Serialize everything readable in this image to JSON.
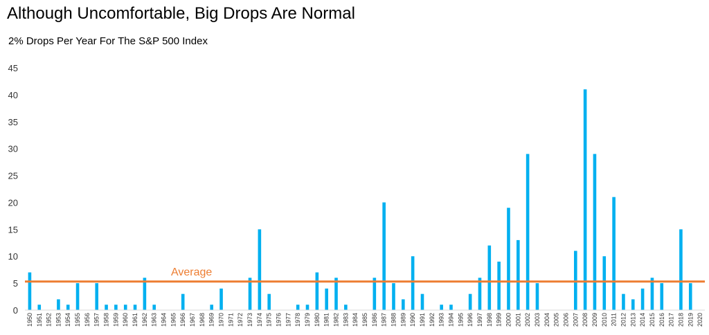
{
  "title": "Although Uncomfortable, Big Drops Are Normal",
  "subtitle": "2% Drops Per Year For The S&P 500 Index",
  "colors": {
    "bar": "#00b0f0",
    "average": "#ed7d31",
    "axis": "#d9d9d9",
    "text": "#333333"
  },
  "chart_data": {
    "type": "bar",
    "title": "Although Uncomfortable, Big Drops Are Normal",
    "subtitle": "2% Drops Per Year For The S&P 500 Index",
    "xlabel": "",
    "ylabel": "",
    "ylim": [
      0,
      45
    ],
    "yticks": [
      0,
      5,
      10,
      15,
      20,
      25,
      30,
      35,
      40,
      45
    ],
    "grid": false,
    "categories": [
      "1950",
      "1951",
      "1952",
      "1953",
      "1954",
      "1955",
      "1956",
      "1957",
      "1958",
      "1959",
      "1960",
      "1961",
      "1962",
      "1963",
      "1964",
      "1965",
      "1966",
      "1967",
      "1968",
      "1969",
      "1970",
      "1971",
      "1972",
      "1973",
      "1974",
      "1975",
      "1976",
      "1977",
      "1978",
      "1979",
      "1980",
      "1981",
      "1982",
      "1983",
      "1984",
      "1985",
      "1986",
      "1987",
      "1988",
      "1989",
      "1990",
      "1991",
      "1992",
      "1993",
      "1994",
      "1995",
      "1996",
      "1997",
      "1998",
      "1999",
      "2000",
      "2001",
      "2002",
      "2003",
      "2004",
      "2005",
      "2006",
      "2007",
      "2008",
      "2009",
      "2010",
      "2011",
      "2012",
      "2013",
      "2014",
      "2015",
      "2016",
      "2017",
      "2018",
      "2019",
      "2020"
    ],
    "values": [
      7,
      1,
      0,
      2,
      1,
      5,
      0,
      5,
      1,
      1,
      1,
      1,
      6,
      1,
      0,
      0,
      3,
      0,
      0,
      1,
      4,
      0,
      0,
      6,
      15,
      3,
      0,
      0,
      1,
      1,
      7,
      4,
      6,
      1,
      0,
      0,
      6,
      20,
      5,
      2,
      10,
      3,
      0,
      1,
      1,
      0,
      3,
      6,
      12,
      9,
      19,
      13,
      29,
      5,
      0,
      0,
      0,
      11,
      41,
      29,
      10,
      21,
      3,
      2,
      4,
      6,
      5,
      0,
      15,
      5,
      0
    ],
    "reference_line": {
      "label": "Average",
      "value": 5.3
    }
  }
}
